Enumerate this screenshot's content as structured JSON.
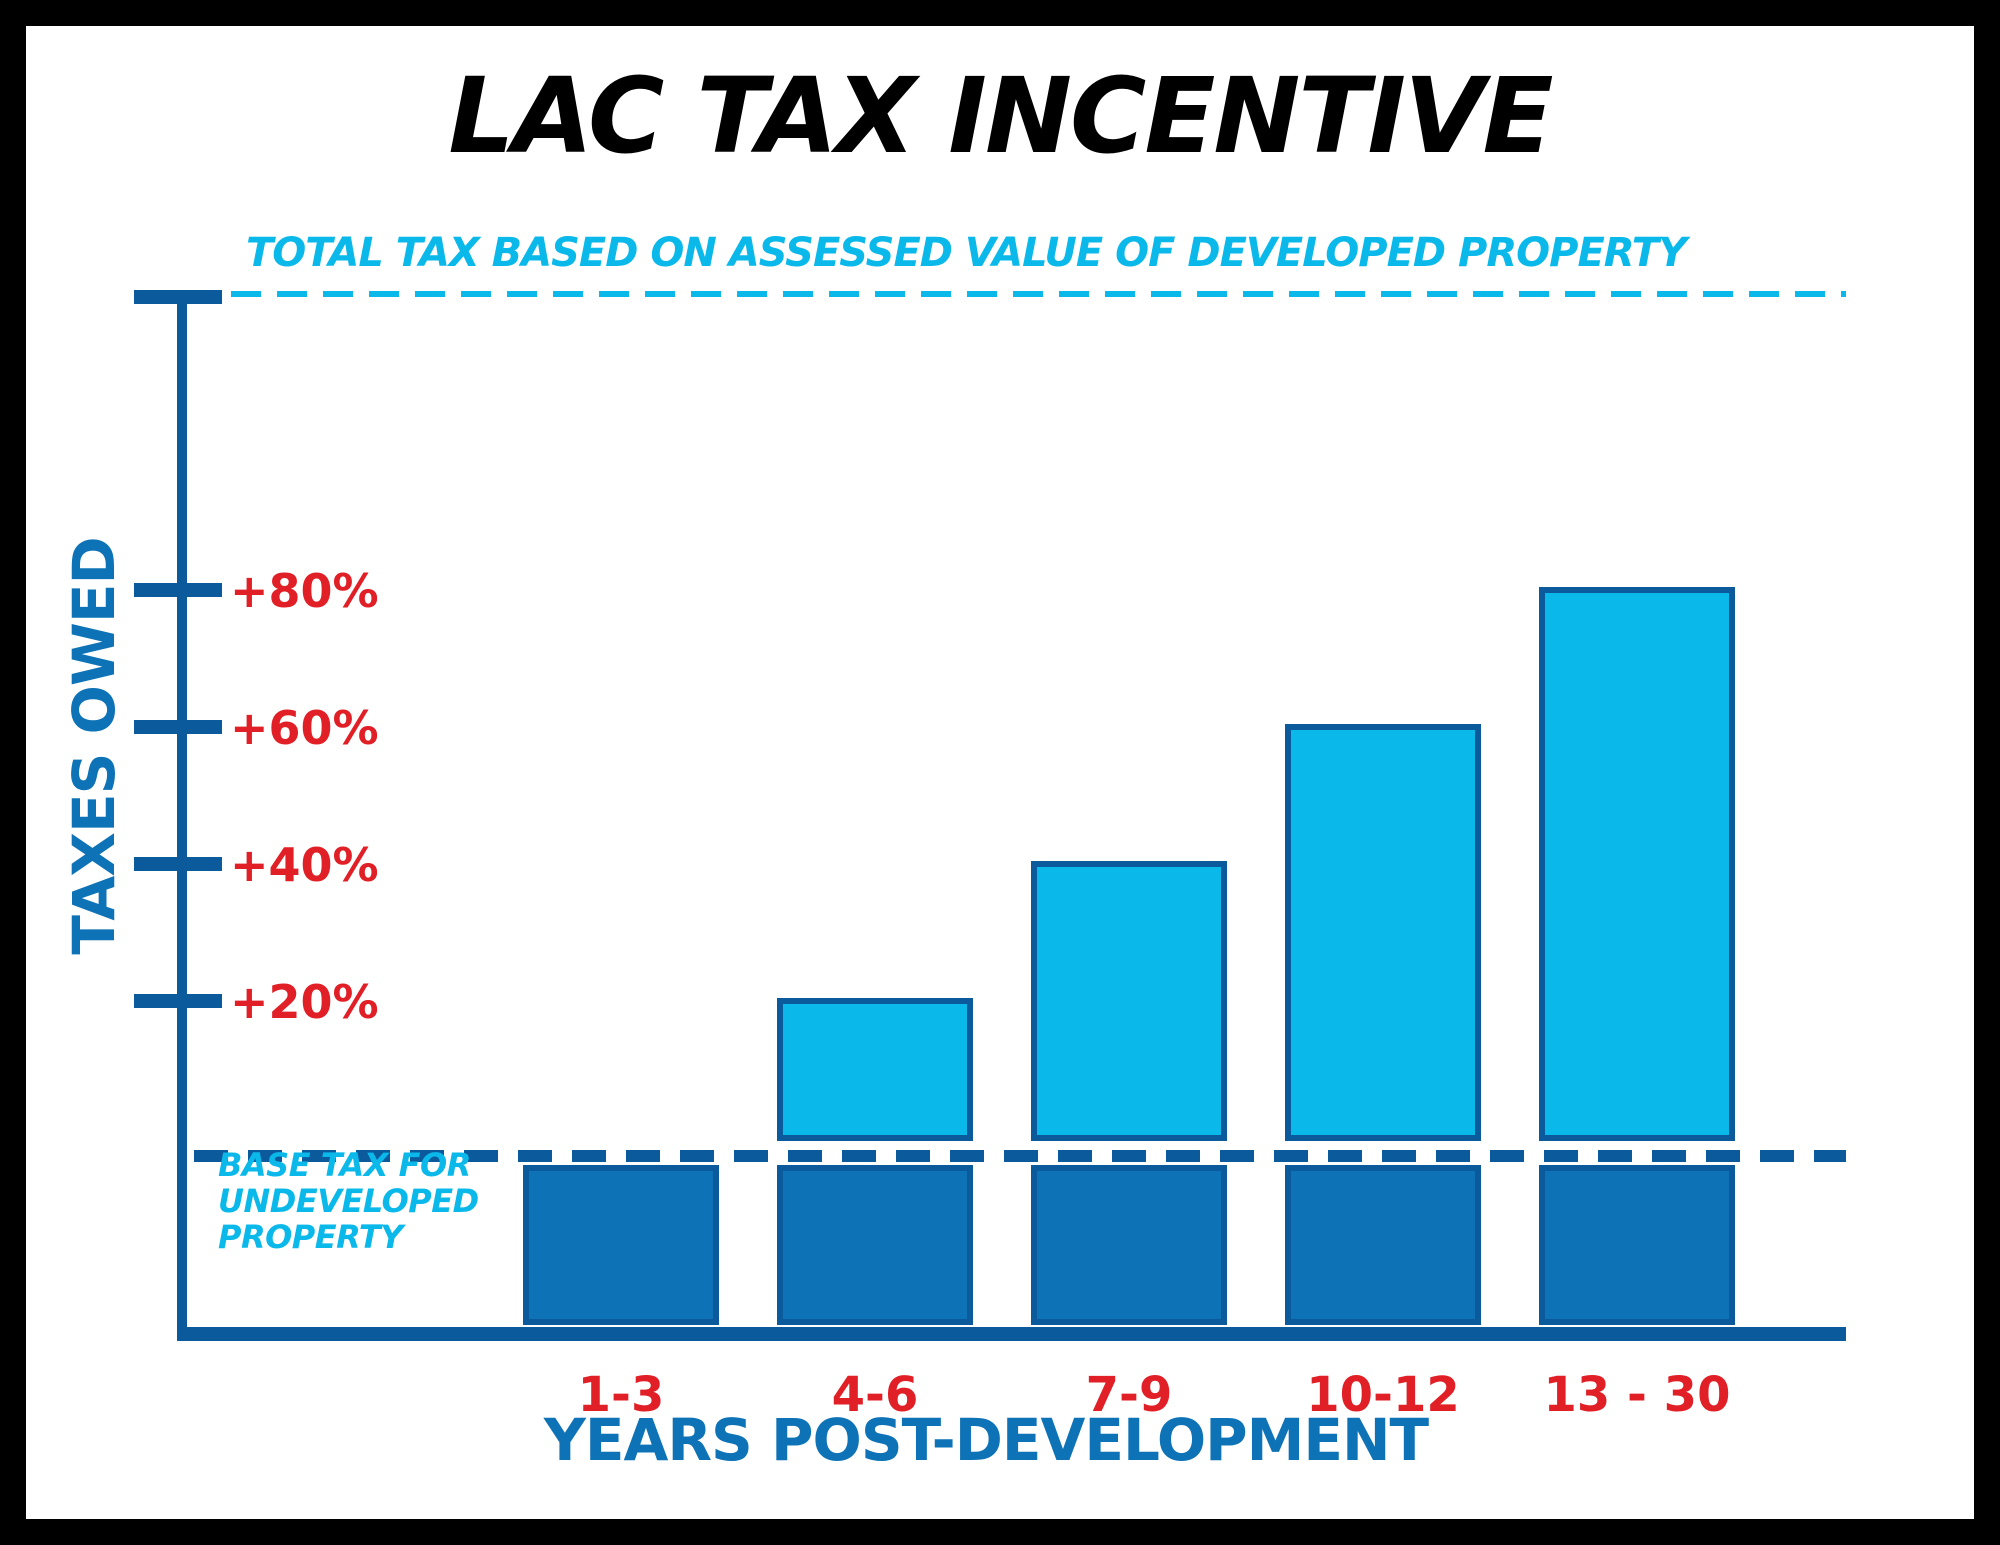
{
  "chart_data": {
    "type": "bar",
    "title": "LAC TAX INCENTIVE",
    "categories": [
      "1-3",
      "4-6",
      "7-9",
      "10-12",
      "13 - 30"
    ],
    "series": [
      {
        "values": [
          100,
          100,
          100,
          100,
          100
        ]
      },
      {
        "values": [
          0,
          20,
          40,
          60,
          80
        ]
      }
    ],
    "xlabel": "YEARS POST-DEVELOPMENT",
    "ylabel": "TAXES OWED",
    "ytick_values": [
      20,
      40,
      60,
      80
    ],
    "ytick_labels": [
      "+20%",
      "+40%",
      "+60%",
      "+80%"
    ],
    "ylim": [
      0,
      100
    ],
    "top_line_label": "TOTAL TAX BASED ON ASSESSED VALUE OF DEVELOPED PROPERTY",
    "base_line_label": [
      "BASE TAX FOR",
      "UNDEVELOPED",
      "PROPERTY"
    ],
    "grid": false
  },
  "colors": {
    "axis": "#0a5a9c",
    "base_bar": "#0e73b6",
    "increment_bar": "#0ab8ea",
    "tick_label": "#e01f26",
    "top_line": "#0ab8ea",
    "base_line": "#0a5a9c",
    "title": "#000000"
  }
}
